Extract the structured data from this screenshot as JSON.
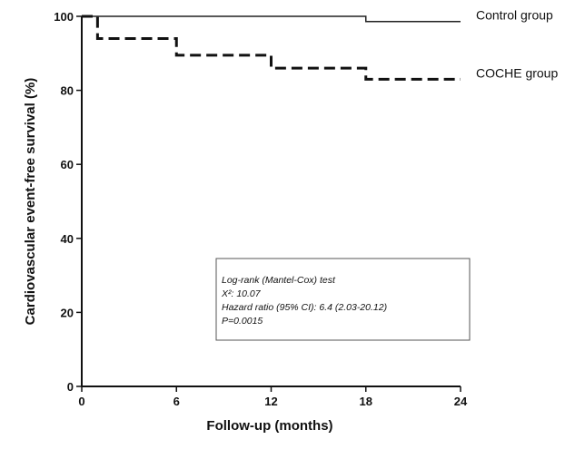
{
  "chart_data": {
    "type": "line",
    "title": "",
    "xlabel": "Follow-up (months)",
    "ylabel": "Cardiovascular event-free survival (%)",
    "xlim": [
      0,
      24
    ],
    "ylim": [
      0,
      100
    ],
    "xticks": [
      0,
      6,
      12,
      18,
      24
    ],
    "yticks": [
      0,
      20,
      40,
      60,
      80,
      100
    ],
    "grid": false,
    "series": [
      {
        "name": "Control group",
        "style": "solid",
        "color": "#222222",
        "x": [
          0,
          18,
          18,
          24
        ],
        "y": [
          100,
          100,
          98.6,
          98.6
        ]
      },
      {
        "name": "COCHE group",
        "style": "dashed",
        "color": "#111111",
        "x": [
          0,
          1,
          1,
          6,
          6,
          12,
          12,
          18,
          18,
          24
        ],
        "y": [
          100,
          100,
          94,
          94,
          89.5,
          89.5,
          86,
          86,
          83,
          83
        ]
      }
    ],
    "annotation": {
      "lines": [
        "Log-rank (Mantel-Cox) test",
        "X²: 10.07",
        "Hazard ratio (95% CI): 6.4 (2.03-20.12)",
        "P=0.0015"
      ]
    }
  }
}
